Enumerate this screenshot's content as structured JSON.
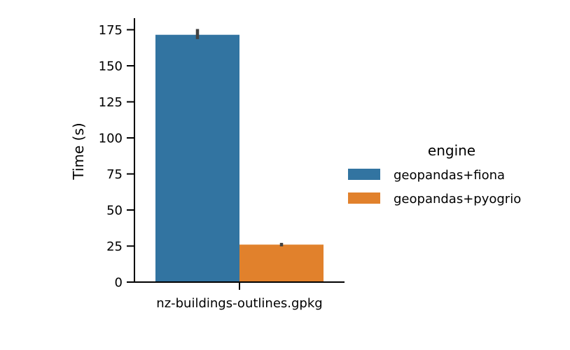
{
  "chart_data": {
    "type": "bar",
    "categories": [
      "nz-buildings-outlines.gpkg"
    ],
    "series": [
      {
        "name": "geopandas+fiona",
        "values": [
          171.5
        ],
        "error": [
          [
            168.5,
            175.5
          ]
        ],
        "color": "#3274a1"
      },
      {
        "name": "geopandas+pyogrio",
        "values": [
          26.0
        ],
        "error": [
          [
            24.8,
            27.2
          ]
        ],
        "color": "#e1812c"
      }
    ],
    "xlabel": "",
    "ylabel": "Time (s)",
    "ylim": [
      0,
      183
    ],
    "yticks": [
      0,
      25,
      50,
      75,
      100,
      125,
      150,
      175
    ],
    "grid": false,
    "legend": {
      "title": "engine",
      "placement": "right"
    },
    "error_bar_color": "#424242"
  }
}
